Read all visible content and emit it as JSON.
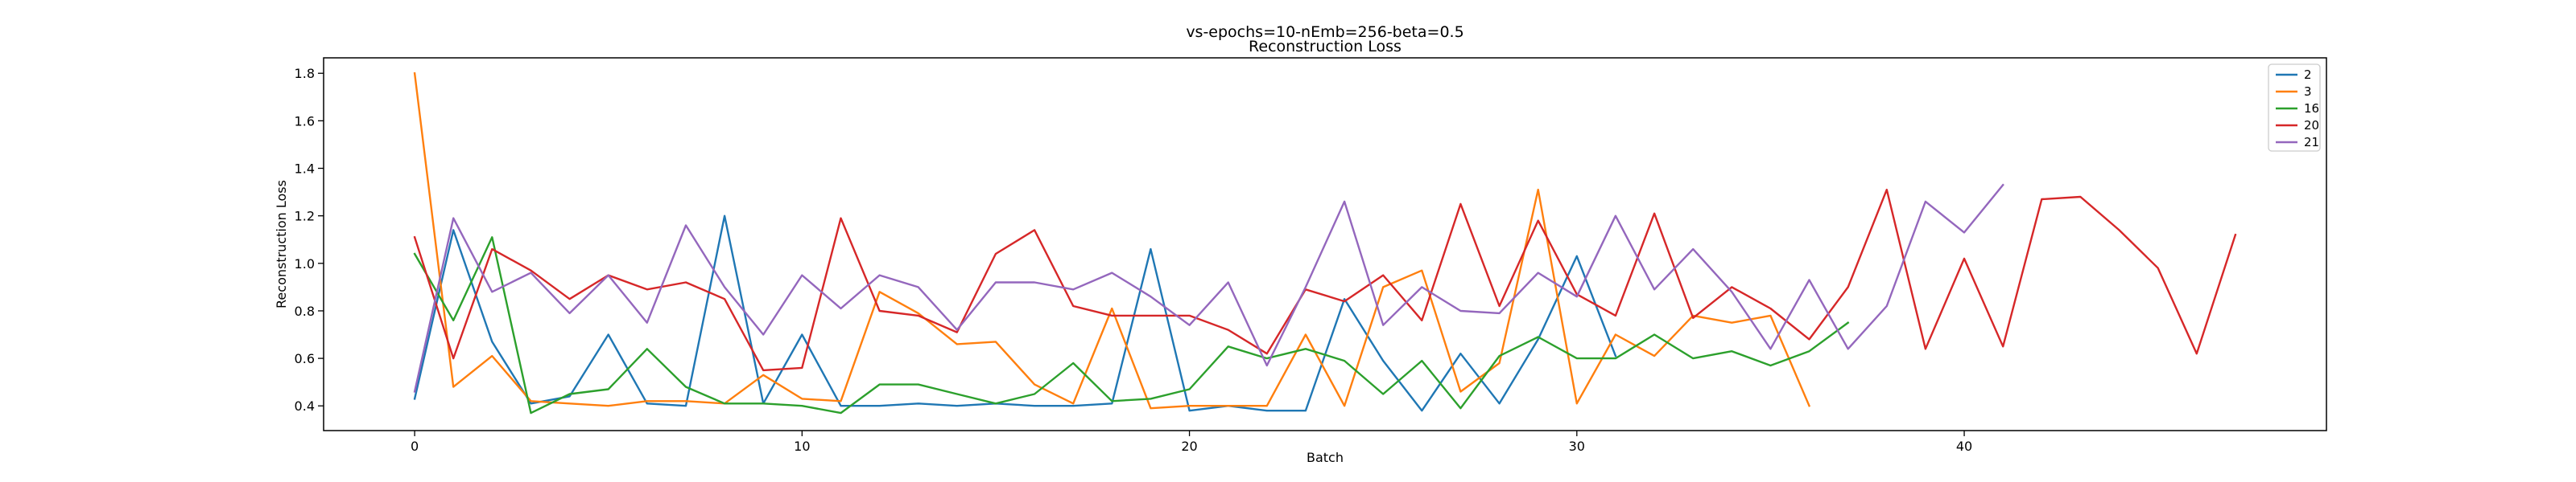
{
  "chart_data": {
    "type": "line",
    "title": "vs-epochs=10-nEmb=256-beta=0.5",
    "subtitle": "Reconstruction Loss",
    "xlabel": "Batch",
    "ylabel": "Reconstruction Loss",
    "xlim": [
      -2.35,
      49.35
    ],
    "ylim": [
      0.296,
      1.865
    ],
    "xticks": [
      0,
      10,
      20,
      30,
      40
    ],
    "yticks": [
      0.4,
      0.6,
      0.8,
      1.0,
      1.2,
      1.4,
      1.6,
      1.8
    ],
    "ytick_labels": [
      "0.4",
      "0.6",
      "0.8",
      "1.0",
      "1.2",
      "1.4",
      "1.6",
      "1.8"
    ],
    "grid": false,
    "legend_position": "top-right",
    "series": [
      {
        "name": "2",
        "color": "#1f77b4",
        "x": [
          0,
          1,
          2,
          3,
          4,
          5,
          6,
          7,
          8,
          9,
          10,
          11,
          12,
          13,
          14,
          15,
          16,
          17,
          18,
          19,
          20,
          21,
          22,
          23,
          24,
          25,
          26,
          27,
          28,
          29,
          30,
          31
        ],
        "y": [
          0.43,
          1.14,
          0.67,
          0.41,
          0.44,
          0.7,
          0.41,
          0.4,
          1.2,
          0.41,
          0.7,
          0.4,
          0.4,
          0.41,
          0.4,
          0.41,
          0.4,
          0.4,
          0.41,
          1.06,
          0.38,
          0.4,
          0.38,
          0.38,
          0.85,
          0.59,
          0.38,
          0.62,
          0.41,
          0.68,
          1.03,
          0.61
        ]
      },
      {
        "name": "3",
        "color": "#ff7f0e",
        "x": [
          0,
          1,
          2,
          3,
          4,
          5,
          6,
          7,
          8,
          9,
          10,
          11,
          12,
          13,
          14,
          15,
          16,
          17,
          18,
          19,
          20,
          21,
          22,
          23,
          24,
          25,
          26,
          27,
          28,
          29,
          30,
          31,
          32,
          33,
          34,
          35,
          36
        ],
        "y": [
          1.8,
          0.48,
          0.61,
          0.42,
          0.41,
          0.4,
          0.42,
          0.42,
          0.41,
          0.53,
          0.43,
          0.42,
          0.88,
          0.79,
          0.66,
          0.67,
          0.49,
          0.41,
          0.81,
          0.39,
          0.4,
          0.4,
          0.4,
          0.7,
          0.4,
          0.9,
          0.97,
          0.46,
          0.58,
          1.31,
          0.41,
          0.7,
          0.61,
          0.78,
          0.75,
          0.78,
          0.4
        ]
      },
      {
        "name": "16",
        "color": "#2ca02c",
        "x": [
          0,
          1,
          2,
          3,
          4,
          5,
          6,
          7,
          8,
          9,
          10,
          11,
          12,
          13,
          14,
          15,
          16,
          17,
          18,
          19,
          20,
          21,
          22,
          23,
          24,
          25,
          26,
          27,
          28,
          29,
          30,
          31,
          32,
          33,
          34,
          35,
          36,
          37
        ],
        "y": [
          1.04,
          0.76,
          1.11,
          0.37,
          0.45,
          0.47,
          0.64,
          0.48,
          0.41,
          0.41,
          0.4,
          0.37,
          0.49,
          0.49,
          0.45,
          0.41,
          0.45,
          0.58,
          0.42,
          0.43,
          0.47,
          0.65,
          0.6,
          0.64,
          0.59,
          0.45,
          0.59,
          0.39,
          0.61,
          0.69,
          0.6,
          0.6,
          0.7,
          0.6,
          0.63,
          0.57,
          0.63,
          0.75
        ]
      },
      {
        "name": "20",
        "color": "#d62728",
        "x": [
          0,
          1,
          2,
          3,
          4,
          5,
          6,
          7,
          8,
          9,
          10,
          11,
          12,
          13,
          14,
          15,
          16,
          17,
          18,
          19,
          20,
          21,
          22,
          23,
          24,
          25,
          26,
          27,
          28,
          29,
          30,
          31,
          32,
          33,
          34,
          35,
          36,
          37,
          38,
          39,
          40,
          41,
          42,
          43,
          44,
          45,
          46,
          47
        ],
        "y": [
          1.11,
          0.6,
          1.06,
          0.97,
          0.85,
          0.95,
          0.89,
          0.92,
          0.85,
          0.55,
          0.56,
          1.19,
          0.8,
          0.78,
          0.71,
          1.04,
          1.14,
          0.82,
          0.78,
          0.78,
          0.78,
          0.72,
          0.62,
          0.89,
          0.84,
          0.95,
          0.76,
          1.25,
          0.82,
          1.18,
          0.87,
          0.78,
          1.21,
          0.77,
          0.9,
          0.81,
          0.68,
          0.9,
          1.31,
          0.64,
          1.02,
          0.65,
          1.27,
          1.28,
          1.14,
          0.98,
          0.62,
          1.12
        ]
      },
      {
        "name": "21",
        "color": "#9467bd",
        "x": [
          0,
          1,
          2,
          3,
          4,
          5,
          6,
          7,
          8,
          9,
          10,
          11,
          12,
          13,
          14,
          15,
          16,
          17,
          18,
          19,
          20,
          21,
          22,
          23,
          24,
          25,
          26,
          27,
          28,
          29,
          30,
          31,
          32,
          33,
          34,
          35,
          36,
          37,
          38,
          39,
          40,
          41
        ],
        "y": [
          0.46,
          1.19,
          0.88,
          0.96,
          0.79,
          0.95,
          0.75,
          1.16,
          0.9,
          0.7,
          0.95,
          0.81,
          0.95,
          0.9,
          0.72,
          0.92,
          0.92,
          0.89,
          0.96,
          0.86,
          0.74,
          0.92,
          0.57,
          0.9,
          1.26,
          0.74,
          0.9,
          0.8,
          0.79,
          0.96,
          0.86,
          1.2,
          0.89,
          1.06,
          0.88,
          0.64,
          0.93,
          0.64,
          0.82,
          1.26,
          1.13,
          1.33
        ]
      }
    ]
  }
}
